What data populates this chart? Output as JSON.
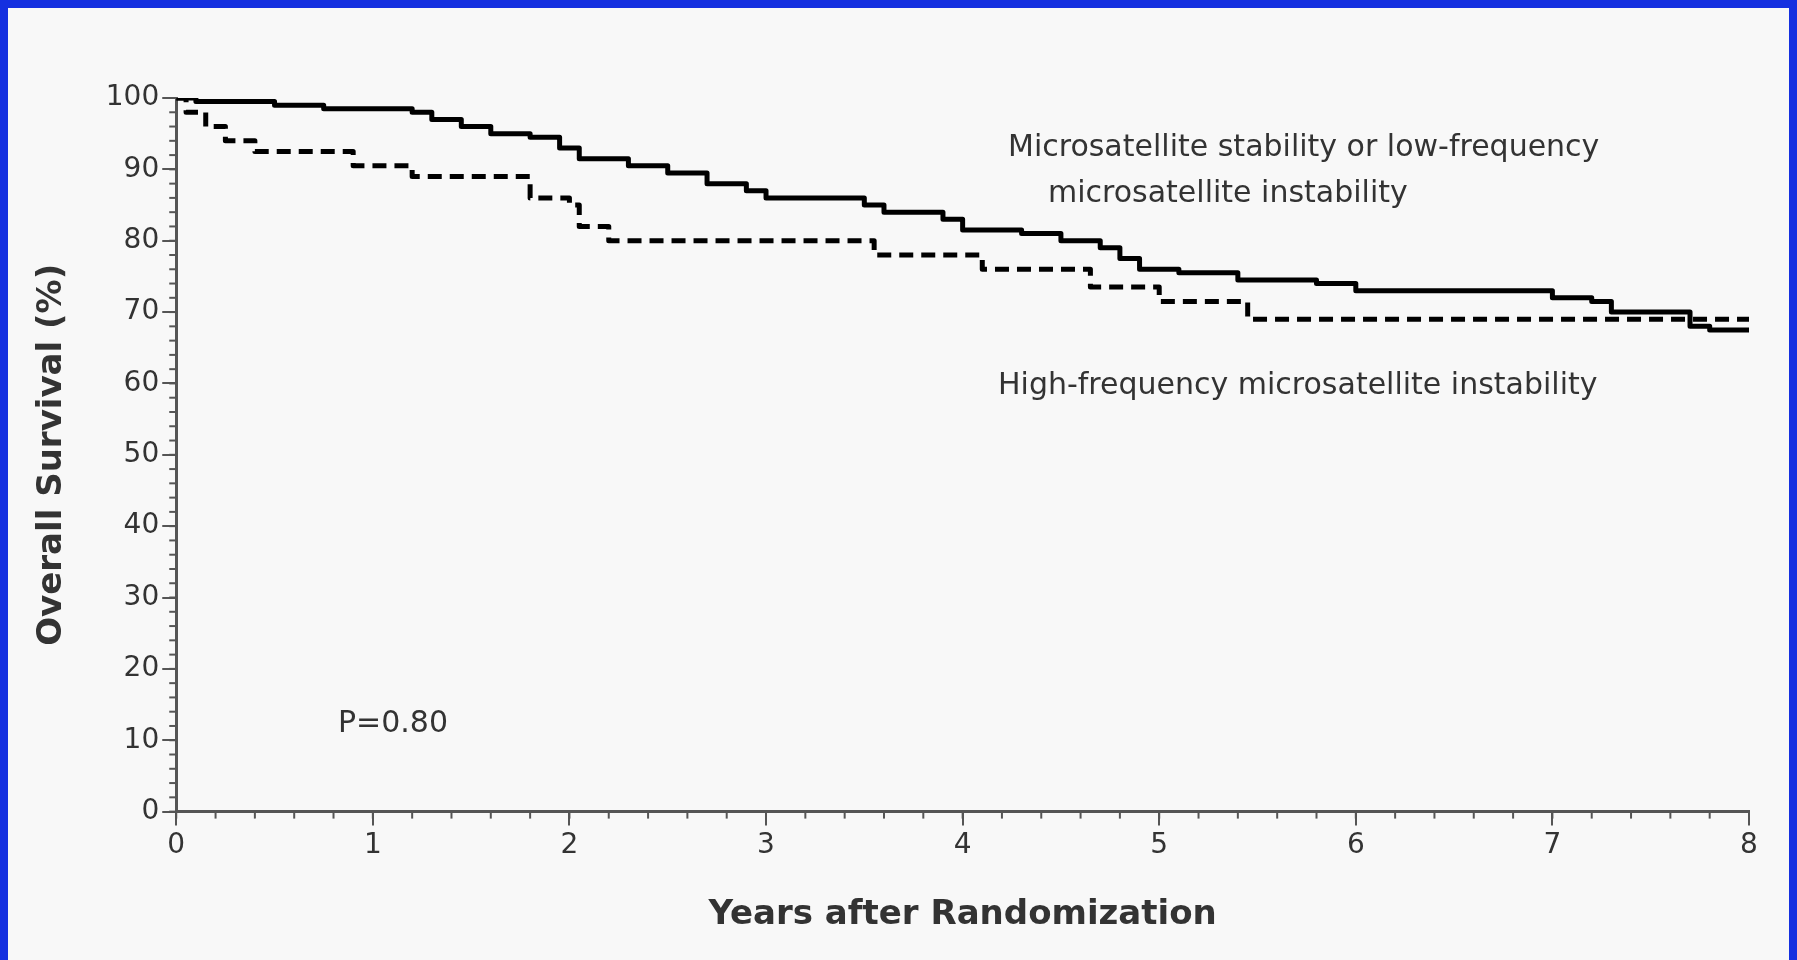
{
  "chart_data": {
    "type": "step",
    "xlabel": "Years after Randomization",
    "ylabel": "Overall Survival (%)",
    "annotations": [
      "P=0.80"
    ],
    "xlim": [
      0,
      8
    ],
    "xticks": [
      0,
      1,
      2,
      3,
      4,
      5,
      6,
      7,
      8
    ],
    "ylim": [
      0,
      100
    ],
    "yticks": [
      0,
      10,
      20,
      30,
      40,
      50,
      60,
      70,
      80,
      90,
      100
    ],
    "grid": false,
    "legend": false,
    "marker": "none",
    "series": [
      {
        "name": "Microsatellite stability or low-frequency microsatellite instability",
        "color": "#000000",
        "line_style": "solid",
        "x": [
          0,
          0.1,
          0.5,
          0.75,
          1.2,
          1.3,
          1.45,
          1.6,
          1.8,
          1.95,
          2.05,
          2.3,
          2.5,
          2.7,
          2.9,
          3.0,
          3.5,
          3.6,
          3.9,
          4.0,
          4.3,
          4.5,
          4.7,
          4.8,
          4.9,
          5.1,
          5.4,
          5.8,
          6.0,
          7.0,
          7.2,
          7.3,
          7.7,
          7.8,
          8.0
        ],
        "values": [
          100,
          99.5,
          99,
          98.5,
          98,
          97,
          96,
          95,
          94.5,
          93,
          91.5,
          90.5,
          89.5,
          88,
          87,
          86,
          85,
          84,
          83,
          81.5,
          81,
          80,
          79,
          77.5,
          76,
          75.5,
          74.5,
          74,
          73,
          72,
          71.5,
          70,
          68,
          67.5,
          67.5
        ]
      },
      {
        "name": "High-frequency microsatellite instability",
        "color": "#000000",
        "line_style": "dashed",
        "x": [
          0,
          0.05,
          0.15,
          0.25,
          0.4,
          0.9,
          1.2,
          1.8,
          2.0,
          2.05,
          2.2,
          3.55,
          4.1,
          4.65,
          5.0,
          5.45,
          8.0
        ],
        "values": [
          100,
          98,
          96,
          94,
          92.5,
          90.5,
          89,
          86,
          85,
          82,
          80,
          78,
          76,
          73.5,
          71.5,
          69,
          69
        ]
      }
    ]
  }
}
